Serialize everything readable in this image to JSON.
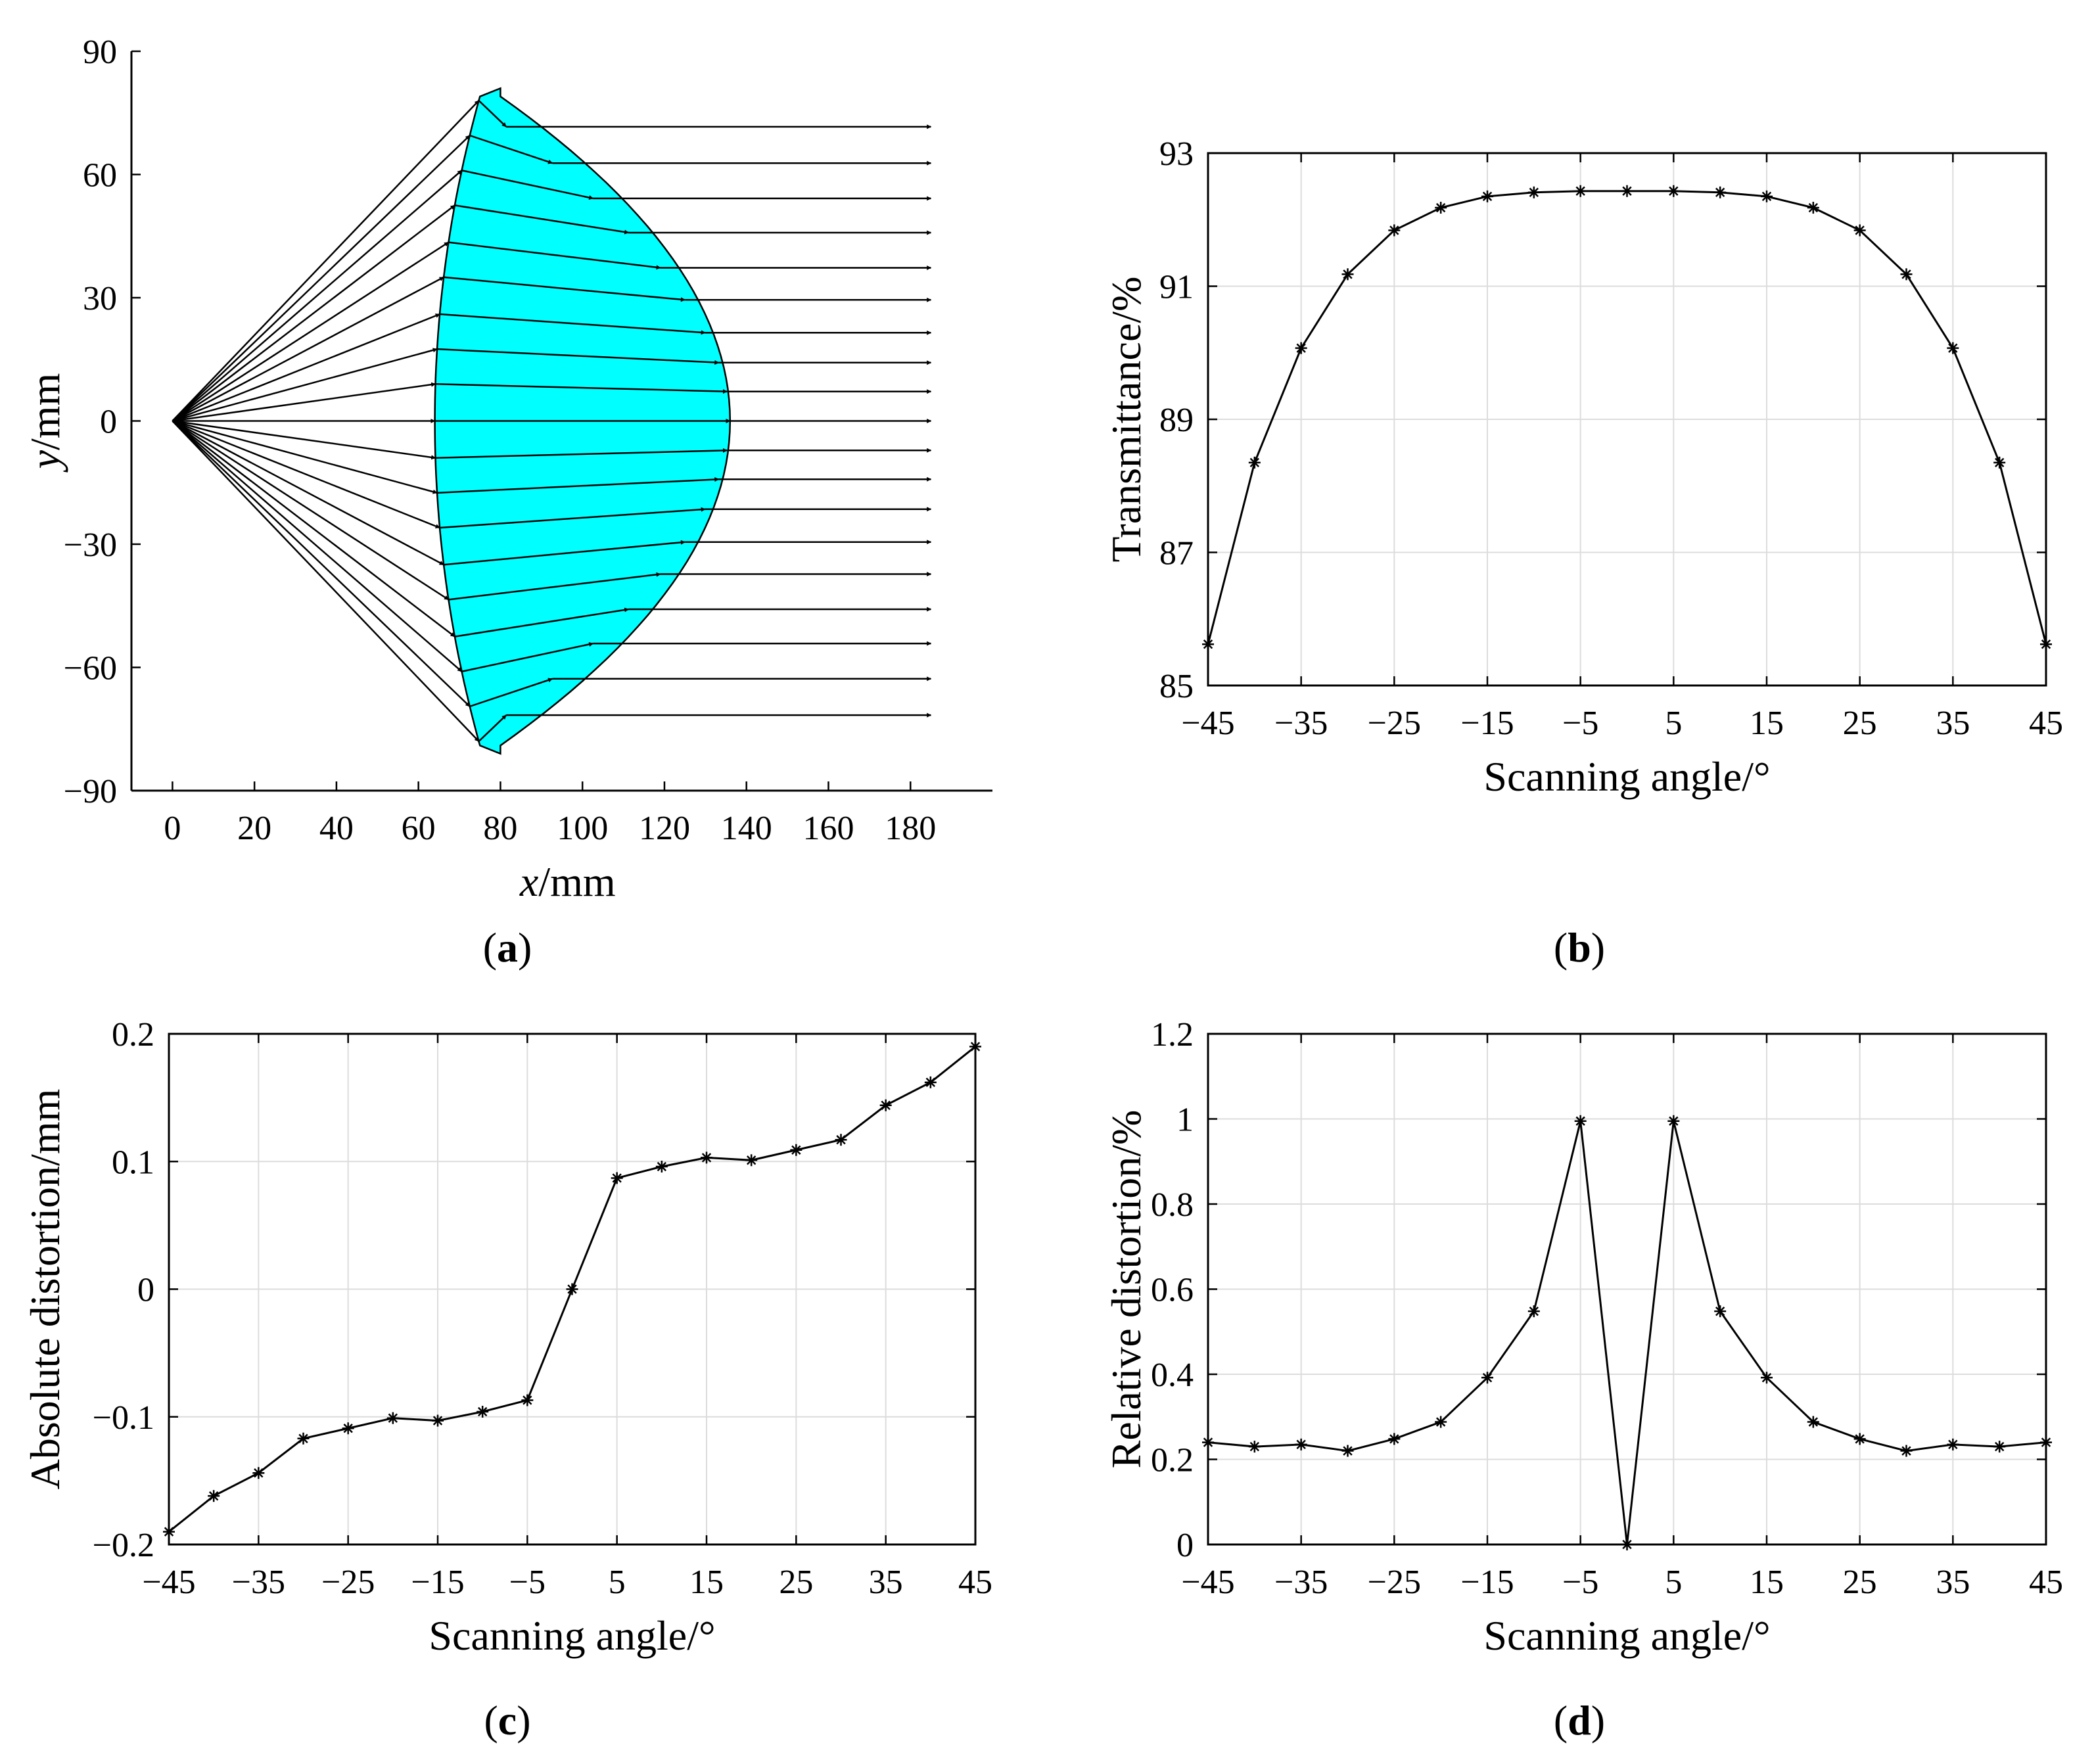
{
  "figure": {
    "panel_labels": [
      "a",
      "b",
      "c",
      "d"
    ]
  },
  "chart_data": [
    {
      "id": "a",
      "type": "diagram",
      "title": "",
      "xlabel_var": "x",
      "xlabel_unit": "/mm",
      "ylabel_var": "y",
      "ylabel_unit": "/mm",
      "xlim": [
        -10,
        200
      ],
      "ylim": [
        -90,
        90
      ],
      "xticks": [
        0,
        20,
        40,
        60,
        80,
        100,
        120,
        140,
        160,
        180
      ],
      "yticks": [
        -90,
        -60,
        -30,
        0,
        30,
        60,
        90
      ],
      "grid": false,
      "lens_color": "#00ffff",
      "source": [
        0,
        0
      ],
      "lens_front_vertex_x": 64,
      "lens_edge_x": 75,
      "lens_back_vertex_x": 136,
      "lens_edge_y": 79,
      "ray_y_end": [
        78,
        69.5,
        61,
        52.5,
        43.5,
        35,
        26,
        17.5,
        9,
        0,
        -9,
        -17.5,
        -26,
        -35,
        -43.5,
        -52.5,
        -61,
        -69.5,
        -78
      ],
      "ray_exit_x": 185,
      "arrow_color": "#000000"
    },
    {
      "id": "b",
      "type": "line",
      "title": "",
      "xlabel": "Scanning angle/°",
      "ylabel": "Transmittance/%",
      "xlim": [
        -45,
        45
      ],
      "ylim": [
        85,
        93
      ],
      "xticks": [
        -45,
        -35,
        -25,
        -15,
        -5,
        5,
        15,
        25,
        35,
        45
      ],
      "yticks": [
        85,
        87,
        89,
        91,
        93
      ],
      "grid": true,
      "marker": "*",
      "series": [
        {
          "name": "Transmittance",
          "x": [
            -45,
            -40,
            -35,
            -30,
            -25,
            -20,
            -15,
            -10,
            -5,
            0,
            5,
            10,
            15,
            20,
            25,
            30,
            35,
            40,
            45
          ],
          "y": [
            85.62,
            88.35,
            90.07,
            91.18,
            91.84,
            92.18,
            92.35,
            92.41,
            92.43,
            92.43,
            92.43,
            92.41,
            92.35,
            92.18,
            91.84,
            91.18,
            90.07,
            88.35,
            85.62
          ]
        }
      ]
    },
    {
      "id": "c",
      "type": "line",
      "title": "",
      "xlabel": "Scanning angle/°",
      "ylabel": "Absolute distortion/mm",
      "xlim": [
        -45,
        45
      ],
      "ylim": [
        -0.2,
        0.2
      ],
      "xticks": [
        -45,
        -35,
        -25,
        -15,
        -5,
        5,
        15,
        25,
        35,
        45
      ],
      "yticks": [
        -0.2,
        -0.1,
        0,
        0.1,
        0.2
      ],
      "grid": true,
      "marker": "*",
      "series": [
        {
          "name": "Absolute distortion",
          "x": [
            -45,
            -40,
            -35,
            -30,
            -25,
            -20,
            -15,
            -10,
            -5,
            0,
            5,
            10,
            15,
            20,
            25,
            30,
            35,
            40,
            45
          ],
          "y": [
            -0.19,
            -0.162,
            -0.144,
            -0.117,
            -0.109,
            -0.101,
            -0.103,
            -0.096,
            -0.087,
            0.0,
            0.087,
            0.096,
            0.103,
            0.101,
            0.109,
            0.117,
            0.144,
            0.162,
            0.19
          ]
        }
      ]
    },
    {
      "id": "d",
      "type": "line",
      "title": "",
      "xlabel": "Scanning angle/°",
      "ylabel": "Relative distortion/%",
      "xlim": [
        -45,
        45
      ],
      "ylim": [
        0,
        1.2
      ],
      "xticks": [
        -45,
        -35,
        -25,
        -15,
        -5,
        5,
        15,
        25,
        35,
        45
      ],
      "yticks": [
        0,
        0.2,
        0.4,
        0.6,
        0.8,
        1,
        1.2
      ],
      "grid": true,
      "marker": "*",
      "series": [
        {
          "name": "Relative distortion",
          "x": [
            -45,
            -40,
            -35,
            -30,
            -25,
            -20,
            -15,
            -10,
            -5,
            0,
            5,
            10,
            15,
            20,
            25,
            30,
            35,
            40,
            45
          ],
          "y": [
            0.24,
            0.23,
            0.235,
            0.22,
            0.248,
            0.288,
            0.392,
            0.548,
            0.995,
            0.0,
            0.995,
            0.548,
            0.392,
            0.288,
            0.248,
            0.22,
            0.235,
            0.23,
            0.24
          ]
        }
      ]
    }
  ]
}
